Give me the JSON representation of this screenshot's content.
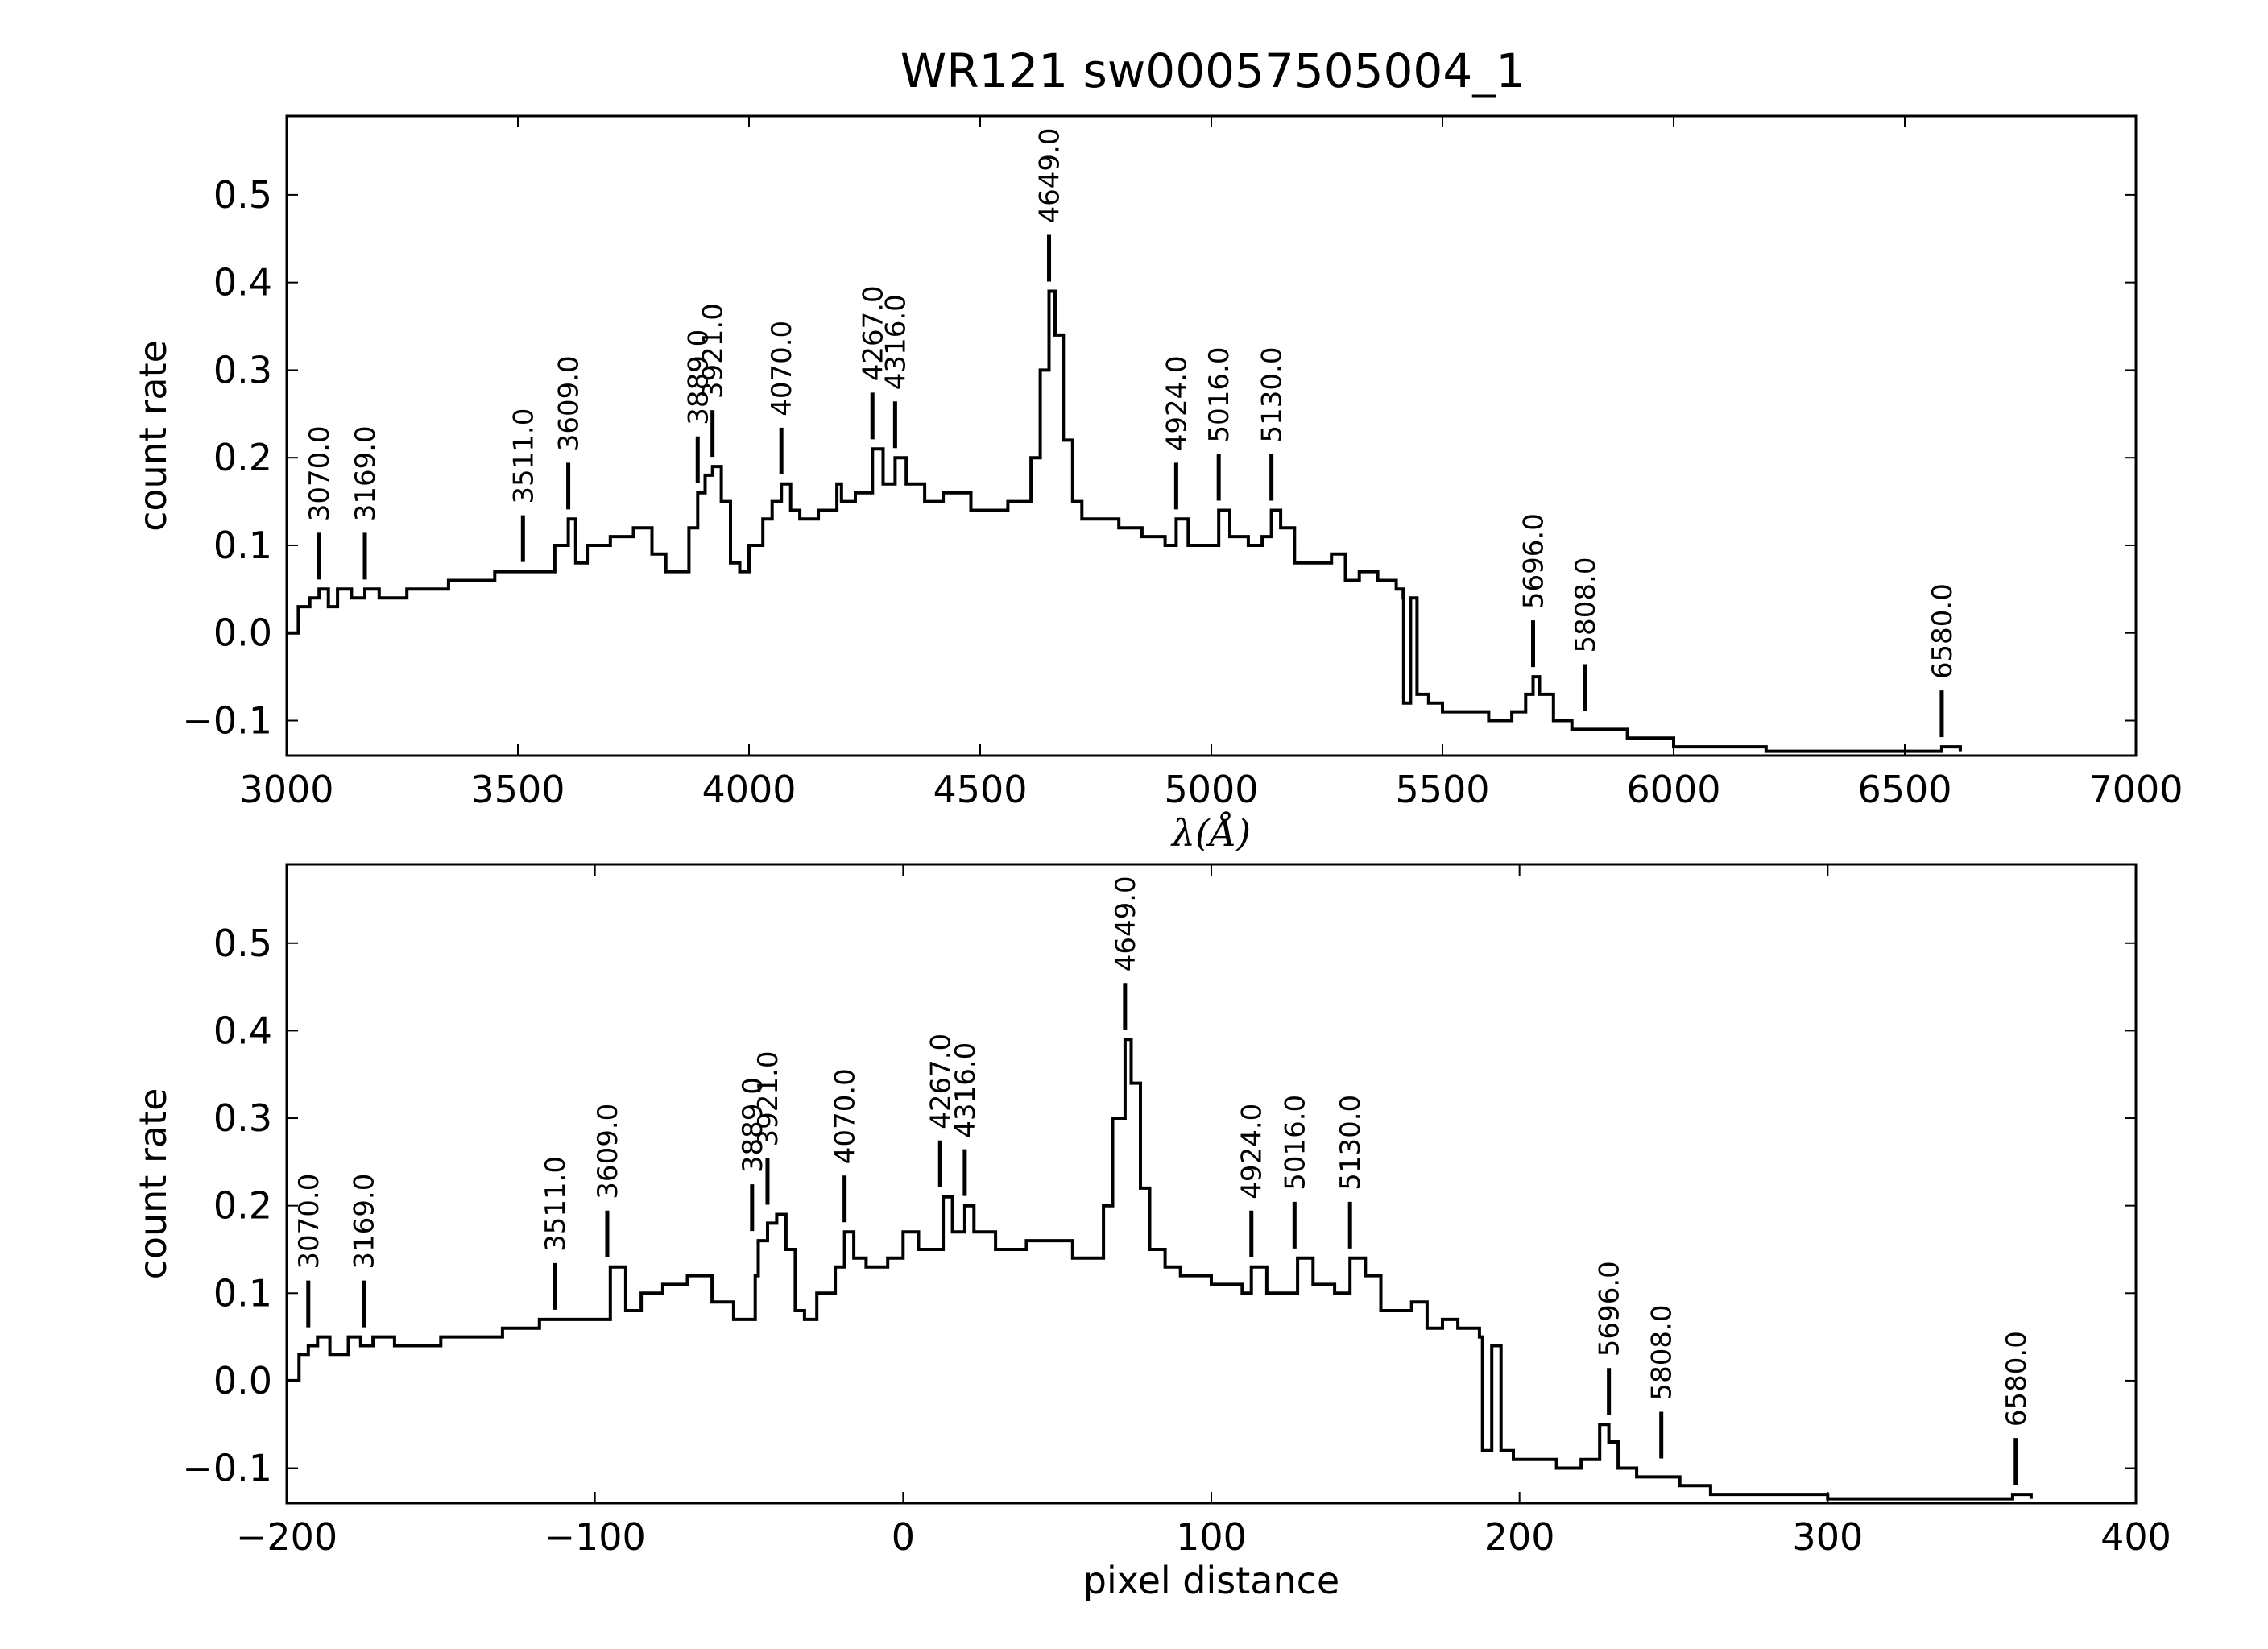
{
  "chart_data": [
    {
      "type": "line",
      "title": "WR121  sw00057505004_1",
      "xlabel": "λ(Å)",
      "ylabel": "count rate",
      "xlim": [
        3000,
        7000
      ],
      "ylim": [
        -0.14,
        0.59
      ],
      "xticks": [
        3000,
        3500,
        4000,
        4500,
        5000,
        5500,
        6000,
        6500,
        7000
      ],
      "xtick_labels": [
        "3000",
        "3500",
        "4000",
        "4500",
        "5000",
        "5500",
        "6000",
        "6500",
        "7000"
      ],
      "yticks": [
        -0.1,
        0.0,
        0.1,
        0.2,
        0.3,
        0.4,
        0.5
      ],
      "ytick_labels": [
        "−0.1",
        "0.0",
        "0.1",
        "0.2",
        "0.3",
        "0.4",
        "0.5"
      ],
      "grid": false,
      "line_color": "#000000",
      "series": [
        {
          "x": [
            3000,
            3025,
            3050,
            3070,
            3090,
            3110,
            3140,
            3169,
            3200,
            3230,
            3260,
            3300,
            3350,
            3400,
            3450,
            3480,
            3511,
            3550,
            3580,
            3609,
            3625,
            3650,
            3700,
            3750,
            3790,
            3820,
            3850,
            3870,
            3889,
            3905,
            3921,
            3940,
            3960,
            3980,
            4000,
            4030,
            4050,
            4070,
            4090,
            4110,
            4150,
            4190,
            4200,
            4230,
            4267,
            4290,
            4316,
            4340,
            4380,
            4420,
            4480,
            4560,
            4610,
            4630,
            4649,
            4662,
            4680,
            4700,
            4720,
            4750,
            4800,
            4850,
            4900,
            4924,
            4950,
            4990,
            5016,
            5040,
            5080,
            5110,
            5130,
            5150,
            5180,
            5200,
            5220,
            5260,
            5290,
            5320,
            5360,
            5400,
            5415,
            5416,
            5430,
            5431,
            5444,
            5445,
            5470,
            5500,
            5550,
            5600,
            5650,
            5680,
            5696,
            5710,
            5740,
            5780,
            5808,
            5840,
            5900,
            6000,
            6100,
            6200,
            6300,
            6400,
            6500,
            6580,
            6620
          ],
          "y": [
            0.0,
            0.03,
            0.04,
            0.05,
            0.03,
            0.05,
            0.04,
            0.05,
            0.04,
            0.04,
            0.05,
            0.05,
            0.06,
            0.06,
            0.07,
            0.07,
            0.07,
            0.07,
            0.1,
            0.13,
            0.08,
            0.1,
            0.11,
            0.12,
            0.09,
            0.07,
            0.07,
            0.12,
            0.16,
            0.18,
            0.19,
            0.15,
            0.08,
            0.07,
            0.1,
            0.13,
            0.15,
            0.17,
            0.14,
            0.13,
            0.14,
            0.17,
            0.15,
            0.16,
            0.21,
            0.17,
            0.2,
            0.17,
            0.15,
            0.16,
            0.14,
            0.15,
            0.2,
            0.3,
            0.39,
            0.34,
            0.22,
            0.15,
            0.13,
            0.13,
            0.12,
            0.11,
            0.1,
            0.13,
            0.1,
            0.1,
            0.14,
            0.11,
            0.1,
            0.11,
            0.14,
            0.12,
            0.08,
            0.08,
            0.08,
            0.09,
            0.06,
            0.07,
            0.06,
            0.05,
            0.04,
            -0.08,
            -0.08,
            0.04,
            0.04,
            -0.07,
            -0.08,
            -0.09,
            -0.09,
            -0.1,
            -0.09,
            -0.07,
            -0.05,
            -0.07,
            -0.1,
            -0.11,
            -0.11,
            -0.11,
            -0.12,
            -0.13,
            -0.13,
            -0.135,
            -0.135,
            -0.135,
            -0.135,
            -0.13,
            -0.135
          ]
        }
      ],
      "annotations": [
        {
          "x": 3070,
          "y": 0.05,
          "text": "3070.0"
        },
        {
          "x": 3169,
          "y": 0.05,
          "text": "3169.0"
        },
        {
          "x": 3511,
          "y": 0.07,
          "text": "3511.0"
        },
        {
          "x": 3609,
          "y": 0.13,
          "text": "3609.0"
        },
        {
          "x": 3889,
          "y": 0.16,
          "text": "3889.0"
        },
        {
          "x": 3921,
          "y": 0.19,
          "text": "3921.0"
        },
        {
          "x": 4070,
          "y": 0.17,
          "text": "4070.0"
        },
        {
          "x": 4267,
          "y": 0.21,
          "text": "4267.0"
        },
        {
          "x": 4316,
          "y": 0.2,
          "text": "4316.0"
        },
        {
          "x": 4649,
          "y": 0.39,
          "text": "4649.0"
        },
        {
          "x": 4924,
          "y": 0.13,
          "text": "4924.0"
        },
        {
          "x": 5016,
          "y": 0.14,
          "text": "5016.0"
        },
        {
          "x": 5130,
          "y": 0.14,
          "text": "5130.0"
        },
        {
          "x": 5696,
          "y": -0.05,
          "text": "5696.0"
        },
        {
          "x": 5808,
          "y": -0.1,
          "text": "5808.0"
        },
        {
          "x": 6580,
          "y": -0.13,
          "text": "6580.0"
        }
      ]
    },
    {
      "type": "line",
      "title": "",
      "xlabel": "pixel distance",
      "ylabel": "count rate",
      "xlim": [
        -200,
        400
      ],
      "ylim": [
        -0.14,
        0.59
      ],
      "xticks": [
        -200,
        -100,
        0,
        100,
        200,
        300,
        400
      ],
      "xtick_labels": [
        "−200",
        "−100",
        "0",
        "100",
        "200",
        "300",
        "400"
      ],
      "yticks": [
        -0.1,
        0.0,
        0.1,
        0.2,
        0.3,
        0.4,
        0.5
      ],
      "ytick_labels": [
        "−0.1",
        "0.0",
        "0.1",
        "0.2",
        "0.3",
        "0.4",
        "0.5"
      ],
      "grid": false,
      "line_color": "#000000",
      "series": [
        {
          "x": [
            -200,
            -196,
            -193,
            -190,
            -186,
            -180,
            -176,
            -172,
            -165,
            -158,
            -150,
            -140,
            -130,
            -122,
            -118,
            -113,
            -105,
            -100,
            -95,
            -90,
            -85,
            -78,
            -70,
            -62,
            -55,
            -50,
            -48,
            -47,
            -44,
            -41,
            -38,
            -35,
            -32,
            -28,
            -22,
            -19,
            -16,
            -12,
            -5,
            0,
            5,
            13,
            16,
            20,
            23,
            30,
            40,
            55,
            65,
            68,
            72,
            74,
            77,
            80,
            85,
            90,
            100,
            110,
            113,
            118,
            124,
            128,
            133,
            140,
            145,
            150,
            155,
            160,
            165,
            170,
            175,
            180,
            187,
            188,
            190,
            191,
            193,
            194,
            198,
            204,
            212,
            220,
            226,
            229,
            232,
            238,
            245,
            252,
            262,
            280,
            300,
            320,
            340,
            360,
            366
          ],
          "y": [
            0.0,
            0.03,
            0.04,
            0.05,
            0.03,
            0.05,
            0.04,
            0.05,
            0.04,
            0.04,
            0.05,
            0.05,
            0.06,
            0.06,
            0.07,
            0.07,
            0.07,
            0.07,
            0.13,
            0.08,
            0.1,
            0.11,
            0.12,
            0.09,
            0.07,
            0.07,
            0.12,
            0.16,
            0.18,
            0.19,
            0.15,
            0.08,
            0.07,
            0.1,
            0.13,
            0.17,
            0.14,
            0.13,
            0.14,
            0.17,
            0.15,
            0.21,
            0.17,
            0.2,
            0.17,
            0.15,
            0.16,
            0.14,
            0.2,
            0.3,
            0.39,
            0.34,
            0.22,
            0.15,
            0.13,
            0.12,
            0.11,
            0.1,
            0.13,
            0.1,
            0.1,
            0.14,
            0.11,
            0.1,
            0.14,
            0.12,
            0.08,
            0.08,
            0.09,
            0.06,
            0.07,
            0.06,
            0.05,
            -0.08,
            -0.08,
            0.04,
            0.04,
            -0.08,
            -0.09,
            -0.09,
            -0.1,
            -0.09,
            -0.05,
            -0.07,
            -0.1,
            -0.11,
            -0.11,
            -0.12,
            -0.13,
            -0.13,
            -0.135,
            -0.135,
            -0.135,
            -0.13,
            -0.135
          ]
        }
      ],
      "annotations": [
        {
          "x": -193,
          "y": 0.05,
          "text": "3070.0"
        },
        {
          "x": -175,
          "y": 0.05,
          "text": "3169.0"
        },
        {
          "x": -113,
          "y": 0.07,
          "text": "3511.0"
        },
        {
          "x": -96,
          "y": 0.13,
          "text": "3609.0"
        },
        {
          "x": -49,
          "y": 0.16,
          "text": "3889.0"
        },
        {
          "x": -44,
          "y": 0.19,
          "text": "3921.0"
        },
        {
          "x": -19,
          "y": 0.17,
          "text": "4070.0"
        },
        {
          "x": 12,
          "y": 0.21,
          "text": "4267.0"
        },
        {
          "x": 20,
          "y": 0.2,
          "text": "4316.0"
        },
        {
          "x": 72,
          "y": 0.39,
          "text": "4649.0"
        },
        {
          "x": 113,
          "y": 0.13,
          "text": "4924.0"
        },
        {
          "x": 127,
          "y": 0.14,
          "text": "5016.0"
        },
        {
          "x": 145,
          "y": 0.14,
          "text": "5130.0"
        },
        {
          "x": 229,
          "y": -0.05,
          "text": "5696.0"
        },
        {
          "x": 246,
          "y": -0.1,
          "text": "5808.0"
        },
        {
          "x": 361,
          "y": -0.13,
          "text": "6580.0"
        }
      ]
    }
  ]
}
